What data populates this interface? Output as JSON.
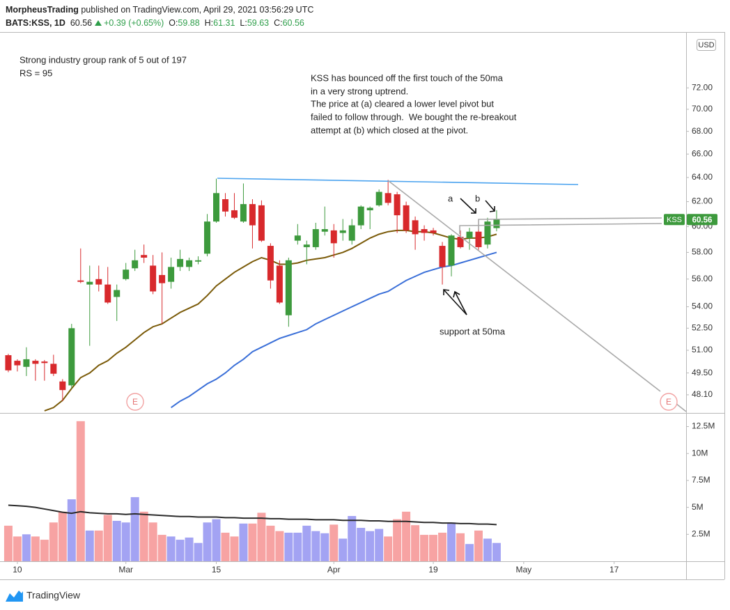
{
  "header": {
    "author": "MorpheusTrading",
    "published": "published on TradingView.com, April 29, 2021 03:56:29 UTC",
    "symbol": "BATS:KSS, 1D",
    "change": "+0.39 (+0.65%)",
    "ohlc_labels": [
      "O:",
      "H:",
      "L:",
      "C:"
    ]
  },
  "chart_data": [
    {
      "type": "candlestick",
      "symbol_label": "KSS",
      "currency": "USD",
      "log": true,
      "up_color": "#3d9a3d",
      "down_color": "#d8292c",
      "open": [
        50.67,
        50.3,
        49.9,
        50.3,
        50.25,
        50.1,
        48.95,
        48.7,
        55.9,
        55.6,
        56.0,
        55.6,
        54.7,
        56.0,
        56.8,
        57.8,
        57.0,
        56.3,
        55.8,
        56.9,
        56.9,
        57.3,
        57.9,
        60.4,
        62.2,
        61.3,
        60.4,
        61.8,
        61.7,
        58.5,
        57.0,
        53.4,
        58.9,
        58.4,
        58.4,
        59.6,
        59.7,
        59.5,
        58.9,
        60.1,
        61.3,
        61.7,
        62.7,
        62.6,
        61.7,
        60.5,
        59.8,
        59.7,
        58.5,
        57.0,
        59.2,
        59.1,
        59.6,
        58.6,
        59.88
      ],
      "high": [
        50.76,
        50.4,
        51.2,
        50.4,
        50.35,
        50.7,
        49.1,
        52.8,
        58.3,
        57.0,
        57.0,
        56.9,
        55.6,
        57.2,
        58.2,
        58.6,
        57.8,
        58.0,
        57.6,
        58.2,
        57.6,
        57.7,
        61.0,
        63.9,
        62.7,
        62.7,
        63.5,
        62.2,
        62.1,
        58.7,
        57.4,
        57.6,
        60.2,
        58.9,
        60.3,
        61.6,
        60.2,
        60.6,
        60.6,
        61.7,
        61.6,
        63.0,
        63.8,
        62.8,
        62.0,
        60.8,
        60.1,
        59.9,
        58.8,
        59.4,
        59.7,
        59.9,
        60.5,
        60.7,
        61.31
      ],
      "low": [
        49.55,
        49.6,
        49.3,
        49.0,
        49.0,
        49.3,
        47.7,
        48.5,
        55.7,
        51.3,
        55.1,
        54.2,
        53.0,
        55.9,
        56.6,
        57.2,
        54.9,
        52.8,
        55.3,
        56.6,
        56.6,
        57.1,
        57.7,
        60.3,
        60.8,
        60.6,
        60.3,
        58.3,
        58.8,
        55.3,
        54.2,
        52.6,
        58.6,
        57.1,
        58.2,
        59.3,
        57.6,
        58.9,
        58.6,
        59.8,
        59.8,
        61.6,
        61.7,
        59.5,
        59.5,
        58.2,
        58.9,
        59.3,
        55.6,
        56.2,
        58.3,
        58.2,
        58.2,
        58.3,
        59.63
      ],
      "close": [
        49.67,
        50.0,
        50.4,
        50.1,
        50.15,
        49.45,
        48.4,
        52.5,
        55.8,
        55.8,
        55.6,
        54.3,
        55.2,
        56.7,
        57.4,
        57.6,
        55.1,
        55.7,
        56.9,
        57.5,
        57.4,
        57.4,
        60.4,
        62.7,
        61.2,
        60.7,
        61.8,
        60.1,
        58.9,
        55.9,
        54.3,
        57.4,
        59.3,
        58.6,
        59.8,
        59.8,
        58.7,
        59.7,
        60.1,
        61.6,
        61.5,
        62.8,
        61.9,
        60.9,
        59.7,
        59.4,
        59.5,
        59.5,
        56.9,
        59.3,
        58.4,
        59.6,
        58.4,
        60.4,
        60.56
      ],
      "lines": [
        {
          "color": "#7a5a08",
          "values": [
            null,
            null,
            null,
            null,
            47.1,
            47.3,
            47.75,
            48.5,
            49.2,
            49.5,
            50.0,
            50.3,
            50.8,
            51.2,
            51.7,
            52.2,
            52.6,
            52.8,
            53.2,
            53.6,
            53.9,
            54.2,
            54.8,
            55.5,
            56.0,
            56.5,
            56.9,
            57.3,
            57.6,
            57.4,
            57.1,
            57.1,
            57.2,
            57.4,
            57.5,
            57.6,
            57.8,
            58.0,
            58.3,
            58.7,
            59.1,
            59.4,
            59.6,
            59.7,
            59.7,
            59.6,
            59.6,
            59.5,
            59.3,
            59.1,
            59.0,
            59.1,
            59.1,
            59.2,
            59.4
          ]
        },
        {
          "color": "#3a6fd8",
          "values": [
            null,
            null,
            null,
            null,
            null,
            null,
            null,
            null,
            null,
            null,
            null,
            null,
            null,
            null,
            null,
            null,
            null,
            null,
            47.3,
            47.7,
            48.0,
            48.4,
            48.8,
            49.1,
            49.5,
            50.0,
            50.4,
            50.9,
            51.2,
            51.5,
            51.8,
            52.0,
            52.2,
            52.4,
            52.8,
            53.1,
            53.4,
            53.7,
            54.0,
            54.3,
            54.6,
            54.9,
            55.1,
            55.5,
            55.9,
            56.2,
            56.5,
            56.7,
            56.9,
            57.0,
            57.2,
            57.4,
            57.6,
            57.8,
            58.0
          ]
        }
      ],
      "xlim": [
        -0.92,
        74.96
      ],
      "ylim": [
        47.01,
        77.41
      ],
      "yticks": [
        {
          "value": 48.1,
          "label": "48.10"
        },
        {
          "value": 49.5,
          "label": "49.50"
        },
        {
          "value": 51,
          "label": "51.00"
        },
        {
          "value": 52.5,
          "label": "52.50"
        },
        {
          "value": 54,
          "label": "54.00"
        },
        {
          "value": 56,
          "label": "56.00"
        },
        {
          "value": 58,
          "label": "58.00"
        },
        {
          "value": 60,
          "label": "60.00"
        },
        {
          "value": 62,
          "label": "62.00"
        },
        {
          "value": 64,
          "label": "64.00"
        },
        {
          "value": 66,
          "label": "66.00"
        },
        {
          "value": 68,
          "label": "68.00"
        },
        {
          "value": 70,
          "label": "70.00"
        },
        {
          "value": 72,
          "label": "72.00"
        }
      ],
      "annotations": [
        "Strong industry group rank of 5 out of 197",
        "RS = 95",
        "KSS has bounced off the first touch of the 50ma",
        "in a very strong uptrend.",
        "The price at (a) cleared a lower level pivot but",
        "failed to follow through.  We bought the re-breakout",
        "attempt at (b) which closed at the pivot.",
        "a",
        "b",
        "support at 50ma",
        "E",
        "E"
      ]
    },
    {
      "type": "bar",
      "up_color": "#a3a3f3",
      "down_color": "#f7a3a3",
      "ma_color": "#2b2b2b",
      "values": [
        3300000,
        2300000,
        2500000,
        2300000,
        2000000,
        3600000,
        4600000,
        5750000,
        13000000,
        2850000,
        2850000,
        4300000,
        3750000,
        3600000,
        5950000,
        4600000,
        3600000,
        2450000,
        2300000,
        2000000,
        2200000,
        1700000,
        3600000,
        3900000,
        2650000,
        2300000,
        3500000,
        3500000,
        4500000,
        3300000,
        2800000,
        2650000,
        2650000,
        3300000,
        2800000,
        2600000,
        3400000,
        2100000,
        4200000,
        3100000,
        2800000,
        3000000,
        2300000,
        3900000,
        4600000,
        3350000,
        2450000,
        2450000,
        2650000,
        3600000,
        2600000,
        1600000,
        2850000,
        2100000,
        1700000
      ],
      "ma": [
        5200000,
        5150000,
        5100000,
        5000000,
        4850000,
        4700000,
        4550000,
        4450000,
        4600000,
        4500000,
        4450000,
        4400000,
        4400000,
        4350000,
        4400000,
        4350000,
        4300000,
        4250000,
        4200000,
        4150000,
        4150000,
        4100000,
        4100000,
        4100000,
        4050000,
        4050000,
        4000000,
        4000000,
        4000000,
        3950000,
        3950000,
        3900000,
        3900000,
        3900000,
        3850000,
        3850000,
        3850000,
        3800000,
        3800000,
        3800000,
        3750000,
        3750000,
        3700000,
        3700000,
        3700000,
        3650000,
        3600000,
        3600000,
        3550000,
        3550000,
        3500000,
        3500000,
        3450000,
        3450000,
        3400000
      ],
      "xlim": [
        -0.92,
        74.96
      ],
      "ylim": [
        0,
        13700000
      ],
      "yticks": [
        {
          "value": 2500000,
          "label": "2.5M"
        },
        {
          "value": 5000000,
          "label": "5M"
        },
        {
          "value": 7500000,
          "label": "7.5M"
        },
        {
          "value": 10000000,
          "label": "10M"
        },
        {
          "value": 12500000,
          "label": "12.5M"
        }
      ],
      "xticks": [
        {
          "value": 1,
          "label": "10"
        },
        {
          "value": 13,
          "label": "Mar"
        },
        {
          "value": 23,
          "label": "15"
        },
        {
          "value": 36,
          "label": "Apr"
        },
        {
          "value": 47,
          "label": "19"
        },
        {
          "value": 57,
          "label": "May"
        },
        {
          "value": 67,
          "label": "17"
        }
      ]
    }
  ],
  "footer": {
    "brand": "TradingView"
  }
}
